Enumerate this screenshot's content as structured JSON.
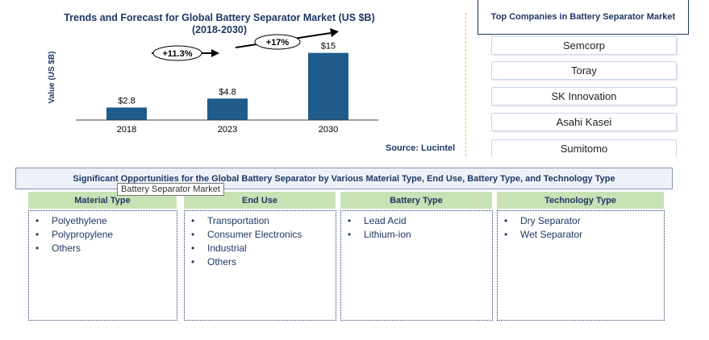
{
  "chart_data": {
    "type": "bar",
    "title": "Trends and Forecast for Global Battery Separator Market (US $B)",
    "subtitle": "(2018-2030)",
    "ylabel": "Value (US $B)",
    "xlabel": "",
    "categories": [
      "2018",
      "2023",
      "2030"
    ],
    "values": [
      2.8,
      4.8,
      15
    ],
    "data_labels": [
      "$2.8",
      "$4.8",
      "$15"
    ],
    "ylim": [
      0,
      18
    ],
    "bar_color": "#1f5c8b",
    "annotations": [
      {
        "text": "+11.3%",
        "from": "2018",
        "to": "2023"
      },
      {
        "text": "+17%",
        "from": "2023",
        "to": "2030"
      }
    ],
    "grid": false
  },
  "source": "Source: Lucintel",
  "companies": {
    "header": "Top Companies in Battery Separator Market",
    "items": [
      "Semcorp",
      "Toray",
      "SK Innovation",
      "Asahi Kasei",
      "Sumitomo"
    ]
  },
  "opportunities": {
    "header": "Significant Opportunities  for the Global Battery Separator by Various Material Type, End Use, Battery Type, and Technology Type",
    "tooltip": "Battery Separator Market",
    "columns": [
      {
        "title": "Material Type",
        "items": [
          "Polyethylene",
          "Polypropylene",
          "Others"
        ]
      },
      {
        "title": "End Use",
        "items": [
          "Transportation",
          "Consumer Electronics",
          "Industrial",
          "Others"
        ]
      },
      {
        "title": "Battery Type",
        "items": [
          "Lead Acid",
          "Lithium-ion"
        ]
      },
      {
        "title": "Technology Type",
        "items": [
          "Dry Separator",
          "Wet Separator"
        ]
      }
    ]
  },
  "colors": {
    "accent": "#1f3864",
    "bar": "#1f5c8b",
    "column_header": "#c9e2b5",
    "separator": "#f0b64a"
  }
}
